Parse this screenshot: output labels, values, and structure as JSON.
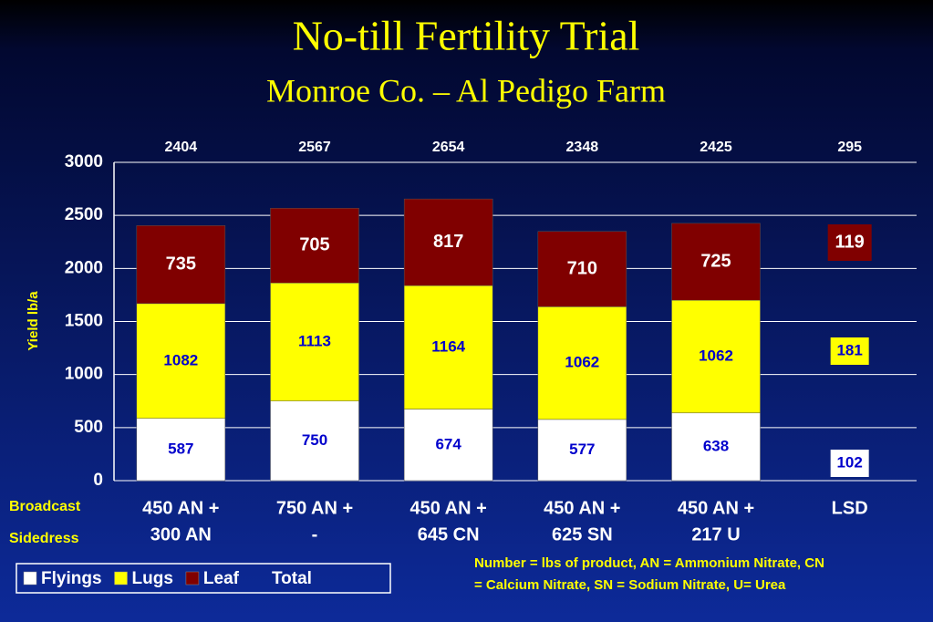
{
  "chart_data": {
    "type": "stacked_bar",
    "title": "No-till Fertility Trial",
    "subtitle": "Monroe Co. – Al Pedigo Farm",
    "y_label": "Yield lb/a",
    "categories": [
      [
        "450 AN +",
        "300 AN"
      ],
      [
        "750 AN +",
        "-"
      ],
      [
        "450 AN +",
        "645 CN"
      ],
      [
        "450 AN +",
        "625 SN"
      ],
      [
        "450 AN +",
        "217 U"
      ]
    ],
    "series": [
      {
        "name": "Flyings",
        "color": "#ffffff",
        "label_color": "#0000cc",
        "values": [
          587,
          750,
          674,
          577,
          638
        ]
      },
      {
        "name": "Lugs",
        "color": "#ffff00",
        "label_color": "#0000cc",
        "values": [
          1082,
          1113,
          1164,
          1062,
          1062
        ]
      },
      {
        "name": "Leaf",
        "color": "#800000",
        "label_color": "#ffffff",
        "values": [
          735,
          705,
          817,
          710,
          725
        ]
      }
    ],
    "totals": [
      2404,
      2567,
      2654,
      2348,
      2425
    ],
    "total_label": "Total",
    "lsd": {
      "label": "LSD",
      "values": [
        102,
        181,
        119
      ],
      "total": 295
    },
    "row_labels": [
      "Broadcast",
      "Sidedress"
    ],
    "note": [
      "Number = lbs of product, AN = Ammonium Nitrate, CN",
      "= Calcium Nitrate, SN = Sodium Nitrate, U= Urea"
    ],
    "ylim": [
      0,
      3000
    ],
    "yticks": [
      0,
      500,
      1000,
      1500,
      2000,
      2500,
      3000
    ],
    "grid": true
  }
}
